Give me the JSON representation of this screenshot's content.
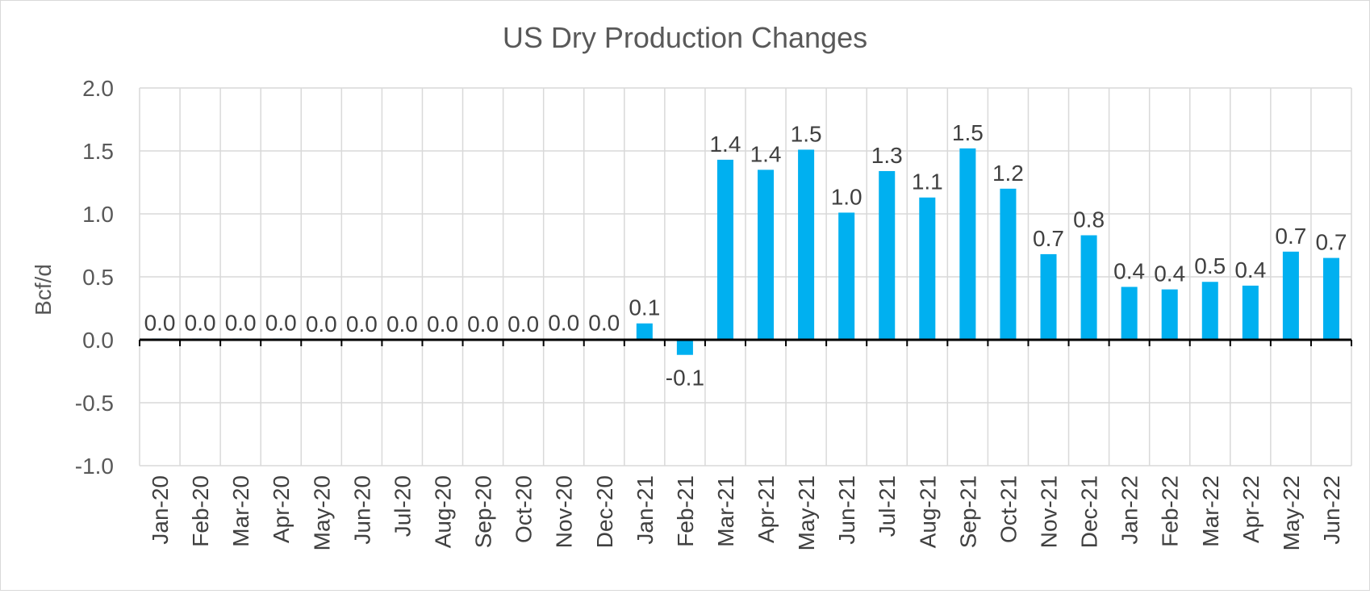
{
  "chart_data": {
    "type": "bar",
    "title": "US Dry Production Changes",
    "ylabel": "Bcf/d",
    "xlabel": "",
    "ylim": [
      -1.0,
      2.0
    ],
    "yticks": [
      -1.0,
      -0.5,
      0.0,
      0.5,
      1.0,
      1.5,
      2.0
    ],
    "ytick_labels": [
      "-1.0",
      "-0.5",
      "0.0",
      "0.5",
      "1.0",
      "1.5",
      "2.0"
    ],
    "grid": true,
    "legend": "none",
    "bar_color": "#00b0f0",
    "categories": [
      "Jan-20",
      "Feb-20",
      "Mar-20",
      "Apr-20",
      "May-20",
      "Jun-20",
      "Jul-20",
      "Aug-20",
      "Sep-20",
      "Oct-20",
      "Nov-20",
      "Dec-20",
      "Jan-21",
      "Feb-21",
      "Mar-21",
      "Apr-21",
      "May-21",
      "Jun-21",
      "Jul-21",
      "Aug-21",
      "Sep-21",
      "Oct-21",
      "Nov-21",
      "Dec-21",
      "Jan-22",
      "Feb-22",
      "Mar-22",
      "Apr-22",
      "May-22",
      "Jun-22"
    ],
    "values": [
      0.01,
      0.01,
      0.01,
      0.01,
      0.0,
      0.0,
      0.0,
      0.0,
      0.0,
      0.0,
      0.01,
      0.01,
      0.13,
      -0.12,
      1.43,
      1.35,
      1.51,
      1.01,
      1.34,
      1.13,
      1.52,
      1.2,
      0.68,
      0.83,
      0.42,
      0.4,
      0.46,
      0.43,
      0.7,
      0.65
    ],
    "data_labels": [
      "0.0",
      "0.0",
      "0.0",
      "0.0",
      "0.0",
      "0.0",
      "0.0",
      "0.0",
      "0.0",
      "0.0",
      "0.0",
      "0.0",
      "0.1",
      "-0.1",
      "1.4",
      "1.4",
      "1.5",
      "1.0",
      "1.3",
      "1.1",
      "1.5",
      "1.2",
      "0.7",
      "0.8",
      "0.4",
      "0.4",
      "0.5",
      "0.4",
      "0.7",
      "0.7"
    ]
  }
}
